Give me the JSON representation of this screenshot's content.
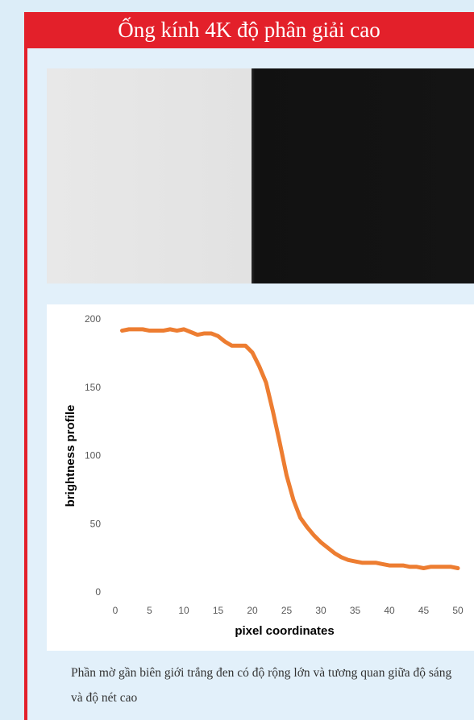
{
  "header": {
    "title": "Ống kính 4K độ phân giải cao"
  },
  "chart_data": {
    "type": "line",
    "x_label": "pixel coordinates",
    "y_label": "brightness profile",
    "x": [
      1,
      2,
      3,
      4,
      5,
      6,
      7,
      8,
      9,
      10,
      11,
      12,
      13,
      14,
      15,
      16,
      17,
      18,
      19,
      20,
      21,
      22,
      23,
      24,
      25,
      26,
      27,
      28,
      29,
      30,
      31,
      32,
      33,
      34,
      35,
      36,
      37,
      38,
      39,
      40,
      41,
      42,
      43,
      44,
      45,
      46,
      47,
      48,
      49,
      50
    ],
    "series": [
      {
        "color": "#ed7d31",
        "values": [
          192,
          193,
          193,
          193,
          192,
          192,
          192,
          193,
          192,
          193,
          191,
          189,
          190,
          190,
          188,
          184,
          181,
          181,
          181,
          176,
          166,
          154,
          133,
          110,
          86,
          68,
          55,
          48,
          42,
          37,
          33,
          29,
          26,
          24,
          23,
          22,
          22,
          22,
          21,
          20,
          20,
          20,
          19,
          19,
          18,
          19,
          19,
          19,
          19,
          18
        ]
      }
    ],
    "xlim": [
      0,
      50
    ],
    "xticks": [
      0,
      5,
      10,
      15,
      20,
      25,
      30,
      35,
      40,
      45,
      50
    ],
    "ylim": [
      0,
      200
    ],
    "yticks": [
      0,
      50,
      100,
      150,
      200
    ],
    "grid": false
  },
  "caption": "Phần mờ gần biên giới trắng đen có độ rộng lớn và tương quan giữa độ sáng và độ nét cao"
}
